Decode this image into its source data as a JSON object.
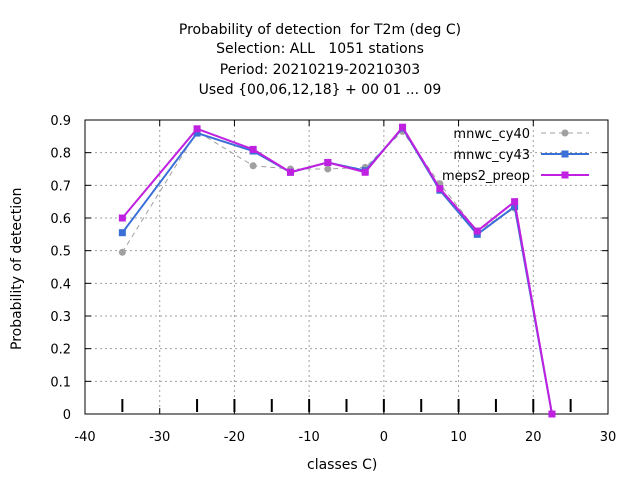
{
  "chart_data": {
    "type": "line",
    "title": [
      "Probability of detection  for T2m (deg C)",
      "Selection: ALL   1051 stations",
      "Period: 20210219-20210303",
      "Used {00,06,12,18} + 00 01 ... 09"
    ],
    "xlabel": "classes C)",
    "ylabel": "Probability of detection",
    "xlim": [
      -40,
      30
    ],
    "ylim": [
      0,
      0.9
    ],
    "xticks": [
      -40,
      -30,
      -20,
      -10,
      0,
      10,
      20,
      30
    ],
    "xtick_labels": [
      "-40",
      "-30",
      "-20",
      "-10",
      "0",
      "10",
      "20",
      "30"
    ],
    "yticks": [
      0,
      0.1,
      0.2,
      0.3,
      0.4,
      0.5,
      0.6,
      0.7,
      0.8,
      0.9
    ],
    "ytick_labels": [
      "0",
      "0.1",
      "0.2",
      "0.3",
      "0.4",
      "0.5",
      "0.6",
      "0.7",
      "0.8",
      "0.9"
    ],
    "class_marks": [
      -35,
      -25,
      -20,
      -15,
      -10,
      -5,
      0,
      5,
      10,
      15,
      20,
      25
    ],
    "grid": true,
    "legend_position": "top-right",
    "x": [
      -35,
      -25,
      -17.5,
      -12.5,
      -7.5,
      -2.5,
      2.5,
      7.5,
      12.5,
      17.5,
      22.5
    ],
    "series": [
      {
        "name": "mnwc_cy40",
        "color": "#a0a0a0",
        "dashed": true,
        "marker": "circle",
        "values": [
          0.495,
          0.865,
          0.76,
          0.75,
          0.75,
          0.755,
          0.865,
          0.705,
          0.56,
          0.63,
          0.0
        ]
      },
      {
        "name": "mnwc_cy43",
        "color": "#3a6fd8",
        "dashed": false,
        "marker": "square",
        "values": [
          0.555,
          0.86,
          0.805,
          0.74,
          0.77,
          0.745,
          0.875,
          0.685,
          0.55,
          0.635,
          0.0
        ]
      },
      {
        "name": "meps2_preop",
        "color": "#c020e0",
        "dashed": false,
        "marker": "square",
        "values": [
          0.6,
          0.873,
          0.81,
          0.74,
          0.77,
          0.74,
          0.878,
          0.69,
          0.56,
          0.65,
          0.0
        ]
      }
    ]
  }
}
